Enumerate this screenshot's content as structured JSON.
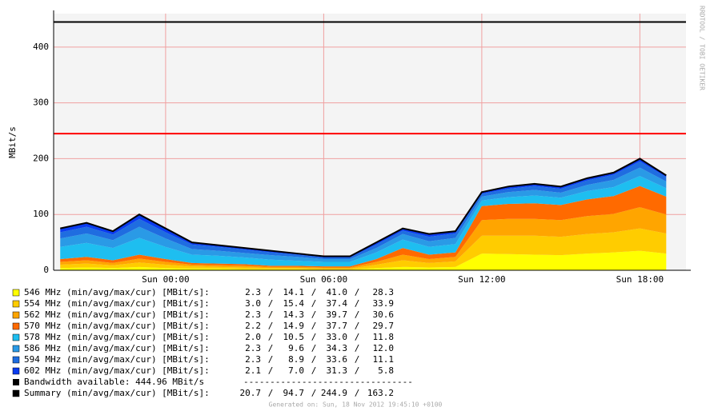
{
  "chart_data": {
    "type": "stacked-area",
    "y_label": "MBit/s",
    "side_text": "RRDTOOL / TOBI OETIKER",
    "x": [
      -4,
      -3,
      -2,
      -1,
      0,
      1,
      2,
      3,
      4,
      5,
      6,
      7,
      8,
      9,
      10,
      11,
      12,
      13,
      14,
      15,
      16,
      17,
      18,
      19
    ],
    "xlim": [
      -4.25,
      19.75
    ],
    "xticks": [
      {
        "value": 0,
        "label": "Sun 00:00"
      },
      {
        "value": 6,
        "label": "Sun 06:00"
      },
      {
        "value": 12,
        "label": "Sun 12:00"
      },
      {
        "value": 18,
        "label": "Sun 18:00"
      }
    ],
    "ylim": [
      0,
      460
    ],
    "yticks": [
      0,
      100,
      200,
      300,
      400
    ],
    "grid": true,
    "reference_lines": [
      {
        "value": 444.96,
        "color": "#000000"
      },
      {
        "value": 244.9,
        "color": "#ff0000"
      }
    ],
    "series": [
      {
        "name": "546 MHz (min/avg/max/cur) [MBit/s]:",
        "color": "#ffff00",
        "stats": [
          2.3,
          14.1,
          41.0,
          28.3
        ],
        "stats_labels": [
          "2.3",
          "14.1",
          "41.0",
          "28.3"
        ],
        "values": [
          4,
          5,
          4,
          6,
          4,
          3,
          3,
          2,
          2,
          2,
          1,
          1,
          4,
          6,
          5,
          6,
          30,
          29,
          28,
          27,
          30,
          32,
          35,
          30
        ]
      },
      {
        "name": "554 MHz (min/avg/max/cur) [MBit/s]:",
        "color": "#ffcc00",
        "stats": [
          3.0,
          15.4,
          37.4,
          33.9
        ],
        "stats_labels": [
          "3.0",
          "15.4",
          "37.4",
          "33.9"
        ],
        "values": [
          6,
          7,
          5,
          8,
          6,
          4,
          3,
          3,
          2,
          2,
          2,
          2,
          6,
          12,
          8,
          10,
          32,
          33,
          34,
          33,
          35,
          36,
          40,
          36
        ]
      },
      {
        "name": "562 MHz (min/avg/max/cur) [MBit/s]:",
        "color": "#ffa500",
        "stats": [
          2.3,
          14.3,
          39.7,
          30.6
        ],
        "stats_labels": [
          "2.3",
          "14.3",
          "39.7",
          "30.6"
        ],
        "values": [
          5,
          6,
          4,
          7,
          5,
          3,
          3,
          3,
          2,
          2,
          2,
          2,
          5,
          10,
          7,
          8,
          28,
          30,
          30,
          30,
          32,
          33,
          38,
          34
        ]
      },
      {
        "name": "570 MHz (min/avg/max/cur) [MBit/s]:",
        "color": "#ff6a00",
        "stats": [
          2.2,
          14.9,
          37.7,
          29.7
        ],
        "stats_labels": [
          "2.2",
          "14.9",
          "37.7",
          "29.7"
        ],
        "values": [
          5,
          6,
          5,
          7,
          5,
          3,
          3,
          3,
          2,
          2,
          2,
          2,
          5,
          12,
          8,
          8,
          25,
          27,
          28,
          27,
          30,
          32,
          38,
          32
        ]
      },
      {
        "name": "578 MHz (min/avg/max/cur) [MBit/s]:",
        "color": "#1ebef0",
        "stats": [
          2.0,
          10.5,
          33.0,
          11.8
        ],
        "stats_labels": [
          "2.0",
          "10.5",
          "33.0",
          "11.8"
        ],
        "values": [
          22,
          25,
          22,
          30,
          22,
          15,
          14,
          12,
          11,
          9,
          8,
          8,
          12,
          15,
          14,
          15,
          10,
          12,
          14,
          13,
          15,
          16,
          18,
          15
        ]
      },
      {
        "name": "586 MHz (min/avg/max/cur) [MBit/s]:",
        "color": "#2a9ae6",
        "stats": [
          2.3,
          9.6,
          34.3,
          12.0
        ],
        "stats_labels": [
          "2.3",
          "9.6",
          "34.3",
          "12.0"
        ],
        "values": [
          15,
          17,
          14,
          20,
          15,
          10,
          9,
          8,
          8,
          7,
          5,
          5,
          8,
          10,
          10,
          11,
          7,
          9,
          10,
          9,
          11,
          13,
          15,
          12
        ]
      },
      {
        "name": "594 MHz (min/avg/max/cur) [MBit/s]:",
        "color": "#1f6de0",
        "stats": [
          2.3,
          8.9,
          33.6,
          11.1
        ],
        "stats_labels": [
          "2.3",
          "8.9",
          "33.6",
          "11.1"
        ],
        "values": [
          11,
          12,
          10,
          14,
          11,
          8,
          7,
          6,
          5,
          4,
          3,
          3,
          6,
          6,
          8,
          8,
          5,
          6,
          7,
          7,
          8,
          9,
          11,
          8
        ]
      },
      {
        "name": "602 MHz (min/avg/max/cur) [MBit/s]:",
        "color": "#0a3cf0",
        "stats": [
          2.1,
          7.0,
          31.3,
          5.8
        ],
        "stats_labels": [
          "2.1",
          "7.0",
          "31.3",
          "5.8"
        ],
        "values": [
          7,
          7,
          6,
          8,
          7,
          4,
          3,
          3,
          3,
          2,
          2,
          2,
          4,
          4,
          5,
          4,
          3,
          4,
          4,
          4,
          4,
          4,
          5,
          3
        ]
      }
    ],
    "bandwidth_legend": {
      "text": "Bandwidth available: 444.96 MBit/s",
      "color": "#000000",
      "separator": "--------------------------------"
    },
    "summary": {
      "name": "Summary (min/avg/max/cur) [MBit/s]:",
      "color": "#000000",
      "stats": [
        20.7,
        94.7,
        244.9,
        163.2
      ],
      "stats_labels": [
        "20.7",
        "94.7",
        "244.9",
        "163.2"
      ]
    },
    "generated": "Generated on: Sun, 18 Nov 2012 19:45:10 +0100"
  }
}
